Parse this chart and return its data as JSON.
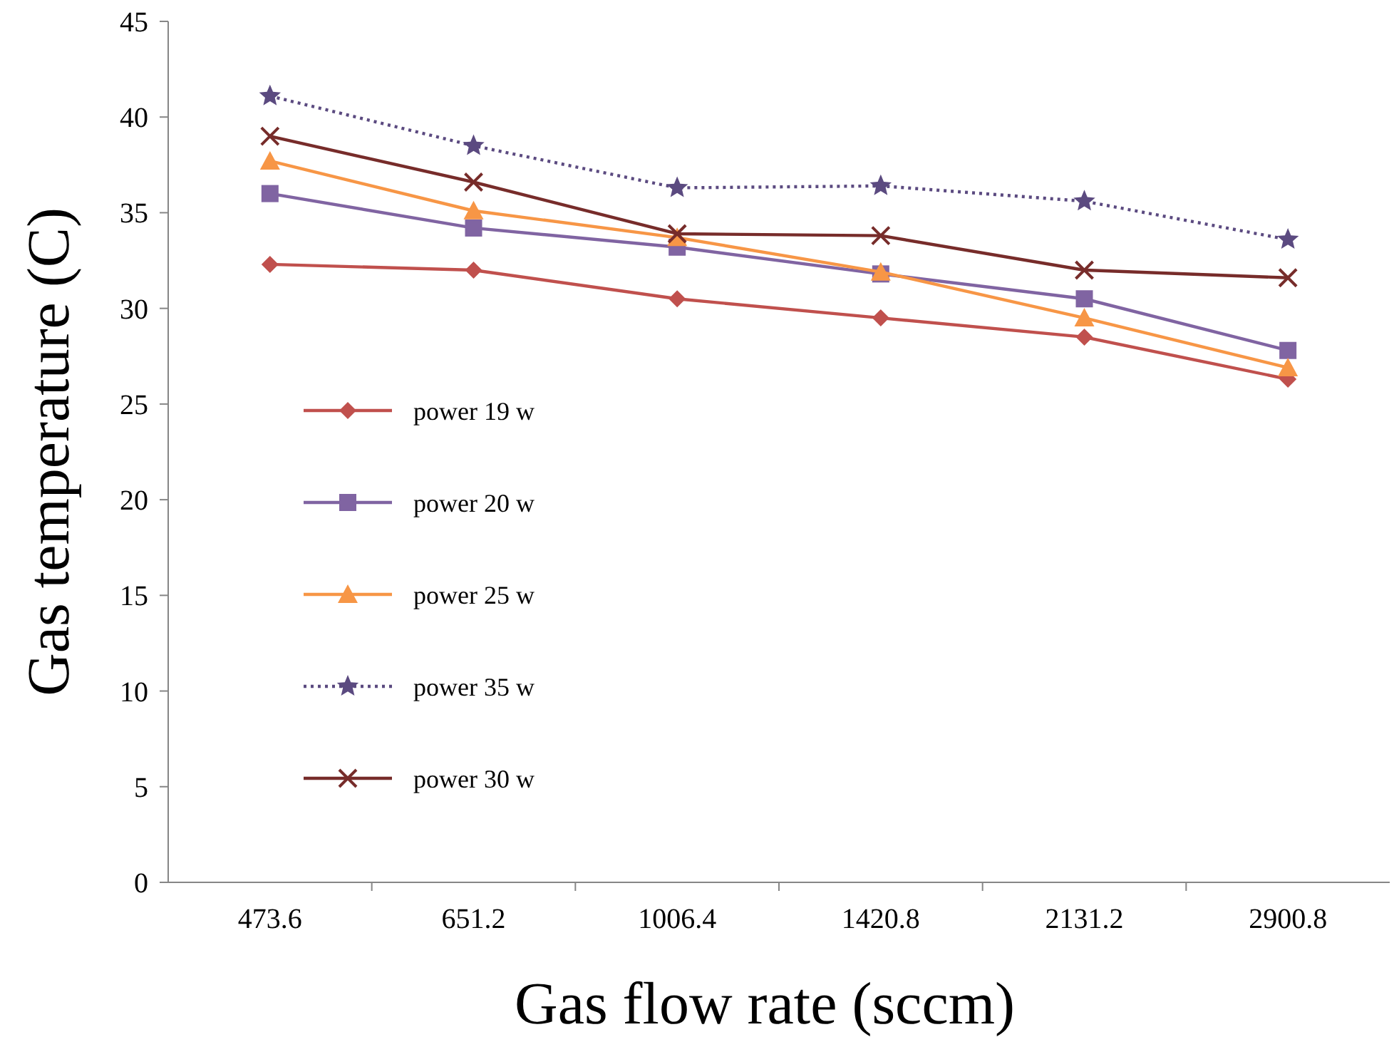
{
  "chart_data": {
    "type": "line",
    "xlabel": "Gas flow rate (sccm)",
    "ylabel": "Gas temperature (C)",
    "categories": [
      "473.6",
      "651.2",
      "1006.4",
      "1420.8",
      "2131.2",
      "2900.8"
    ],
    "ylim": [
      0,
      45
    ],
    "yticks": [
      0,
      5,
      10,
      15,
      20,
      25,
      30,
      35,
      40,
      45
    ],
    "grid": false,
    "legend": "left",
    "series": [
      {
        "name": "power 19 w",
        "color": "#c0504d",
        "marker": "diamond",
        "line_style": "solid",
        "values": [
          32.3,
          32.0,
          30.5,
          29.5,
          28.5,
          26.3
        ]
      },
      {
        "name": "power 20 w",
        "color": "#8064a2",
        "marker": "square",
        "line_style": "solid",
        "values": [
          36.0,
          34.2,
          33.2,
          31.8,
          30.5,
          27.8
        ]
      },
      {
        "name": "power 25 w",
        "color": "#f79646",
        "marker": "triangle",
        "line_style": "solid",
        "values": [
          37.7,
          35.1,
          33.7,
          31.9,
          29.5,
          26.9
        ]
      },
      {
        "name": "power 35 w",
        "color": "#5b4a80",
        "marker": "star",
        "line_style": "dotted",
        "values": [
          41.1,
          38.5,
          36.3,
          36.4,
          35.6,
          33.6
        ]
      },
      {
        "name": "power 30 w",
        "color": "#772c2a",
        "marker": "cross",
        "line_style": "solid",
        "values": [
          39.0,
          36.6,
          33.9,
          33.8,
          32.0,
          31.6
        ]
      }
    ]
  }
}
